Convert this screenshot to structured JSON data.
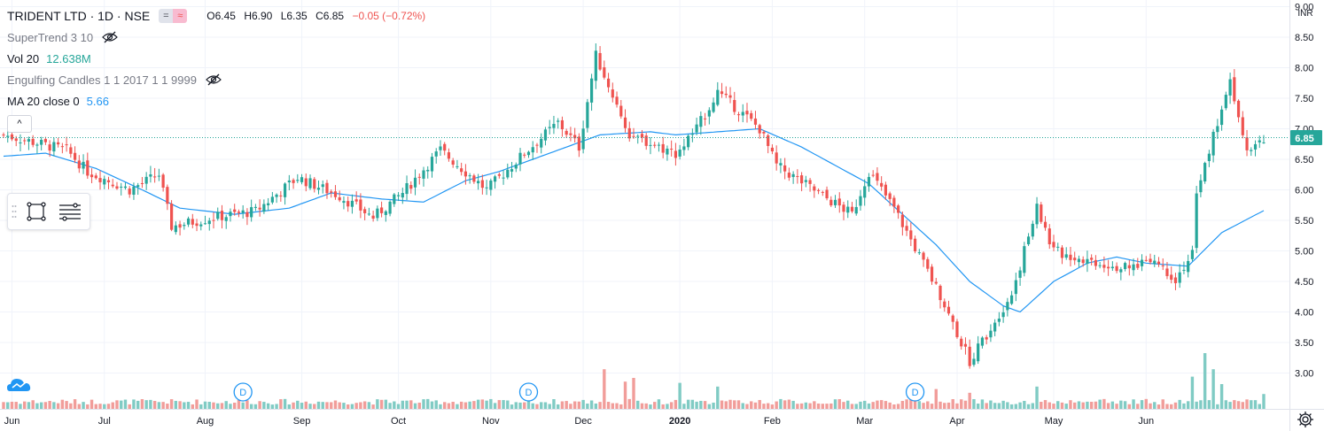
{
  "header": {
    "symbol": "TRIDENT LTD · 1D · NSE",
    "open": "O6.45",
    "high": "H6.90",
    "low": "L6.35",
    "close": "C6.85",
    "change": "−0.05 (−0.72%)",
    "toggle_a": "=",
    "toggle_b": "≈"
  },
  "indicators": [
    {
      "name": "SuperTrend 3 10",
      "value": "",
      "hidden": true
    },
    {
      "name": "Vol 20",
      "value": "12.638M",
      "hidden": false
    },
    {
      "name": "Engulfing Candles 1 1 2017 1 1 9999",
      "value": "",
      "hidden": true
    },
    {
      "name": "MA 20 close 0",
      "value": "5.66",
      "hidden": false
    }
  ],
  "collapse_label": "^",
  "price_axis": {
    "currency": "INR",
    "last_price": "6.85",
    "ticks": [
      "3.00",
      "3.50",
      "4.00",
      "4.50",
      "5.00",
      "5.50",
      "6.00",
      "6.50",
      "7.00",
      "7.50",
      "8.00",
      "8.50",
      "9.00"
    ]
  },
  "time_axis": {
    "labels": [
      "Jun",
      "Jul",
      "Aug",
      "Sep",
      "Oct",
      "Nov",
      "Dec",
      "2020",
      "Feb",
      "Mar",
      "Apr",
      "May",
      "Jun"
    ],
    "bold": [
      false,
      false,
      false,
      false,
      false,
      false,
      false,
      true,
      false,
      false,
      false,
      false,
      false
    ]
  },
  "dividend_marker_label": "D",
  "icons": {
    "eye": "eye-crossed-icon",
    "draw_rect": "rectangle-tool-icon",
    "draw_lines": "lines-tool-icon",
    "drag": "drag-handle-icon",
    "corner": "chart-type-cloud-icon",
    "settings": "gear-icon"
  },
  "colors": {
    "up": "#26a69a",
    "down": "#ef5350",
    "vol_up": "#80cbc4",
    "vol_down": "#f19d9a",
    "ma": "#2196f3",
    "price_line": "#26a69a",
    "grid": "#f0f3fa",
    "marker": "#2196f3"
  },
  "chart_data": {
    "type": "candlestick",
    "x_labels": [
      "Jun",
      "Jul",
      "Aug",
      "Sep",
      "Oct",
      "Nov",
      "Dec",
      "2020",
      "Feb",
      "Mar",
      "Apr",
      "May",
      "Jun"
    ],
    "ylim": [
      2.95,
      9.05
    ],
    "grid": true,
    "last_price": 6.85,
    "dividend_events": [
      "Aug",
      "Nov",
      "Mar"
    ],
    "price_anchors": [
      [
        0,
        6.9
      ],
      [
        15,
        6.65
      ],
      [
        20,
        6.3
      ],
      [
        30,
        6.0
      ],
      [
        37,
        6.25
      ],
      [
        40,
        5.4
      ],
      [
        50,
        5.55
      ],
      [
        60,
        5.65
      ],
      [
        70,
        6.2
      ],
      [
        80,
        5.9
      ],
      [
        88,
        5.55
      ],
      [
        95,
        5.95
      ],
      [
        104,
        6.65
      ],
      [
        115,
        6.0
      ],
      [
        124,
        6.6
      ],
      [
        132,
        7.1
      ],
      [
        137,
        6.7
      ],
      [
        141,
        8.2
      ],
      [
        149,
        6.9
      ],
      [
        160,
        6.6
      ],
      [
        165,
        7.0
      ],
      [
        170,
        7.6
      ],
      [
        180,
        7.0
      ],
      [
        184,
        6.4
      ],
      [
        195,
        5.9
      ],
      [
        202,
        5.6
      ],
      [
        206,
        6.3
      ],
      [
        212,
        5.7
      ],
      [
        222,
        4.4
      ],
      [
        230,
        3.2
      ],
      [
        240,
        4.3
      ],
      [
        246,
        5.7
      ],
      [
        250,
        5.0
      ],
      [
        255,
        4.9
      ],
      [
        268,
        4.7
      ],
      [
        273,
        4.9
      ],
      [
        279,
        4.55
      ],
      [
        283,
        4.95
      ],
      [
        284,
        5.9
      ],
      [
        288,
        6.9
      ],
      [
        292,
        7.8
      ],
      [
        296,
        6.7
      ],
      [
        300,
        6.85
      ]
    ],
    "ma_anchors": [
      [
        0,
        6.55
      ],
      [
        10,
        6.6
      ],
      [
        22,
        6.35
      ],
      [
        33,
        6.0
      ],
      [
        42,
        5.7
      ],
      [
        55,
        5.6
      ],
      [
        68,
        5.7
      ],
      [
        78,
        5.95
      ],
      [
        90,
        5.85
      ],
      [
        100,
        5.8
      ],
      [
        110,
        6.15
      ],
      [
        118,
        6.3
      ],
      [
        130,
        6.6
      ],
      [
        142,
        6.9
      ],
      [
        154,
        6.95
      ],
      [
        160,
        6.9
      ],
      [
        170,
        6.95
      ],
      [
        180,
        7.0
      ],
      [
        190,
        6.7
      ],
      [
        198,
        6.4
      ],
      [
        206,
        6.1
      ],
      [
        214,
        5.6
      ],
      [
        222,
        5.1
      ],
      [
        230,
        4.5
      ],
      [
        238,
        4.1
      ],
      [
        242,
        4.0
      ],
      [
        250,
        4.5
      ],
      [
        258,
        4.8
      ],
      [
        265,
        4.9
      ],
      [
        272,
        4.8
      ],
      [
        282,
        4.75
      ],
      [
        290,
        5.3
      ],
      [
        300,
        5.66
      ]
    ],
    "volume_spikes": [
      [
        143,
        3.2
      ],
      [
        148,
        2.2
      ],
      [
        150,
        2.5
      ],
      [
        161,
        2.1
      ],
      [
        170,
        1.8
      ],
      [
        222,
        1.6
      ],
      [
        230,
        1.3
      ],
      [
        246,
        1.8
      ],
      [
        283,
        2.6
      ],
      [
        286,
        4.5
      ],
      [
        288,
        3.2
      ],
      [
        290,
        2.0
      ],
      [
        300,
        1.2
      ]
    ]
  }
}
